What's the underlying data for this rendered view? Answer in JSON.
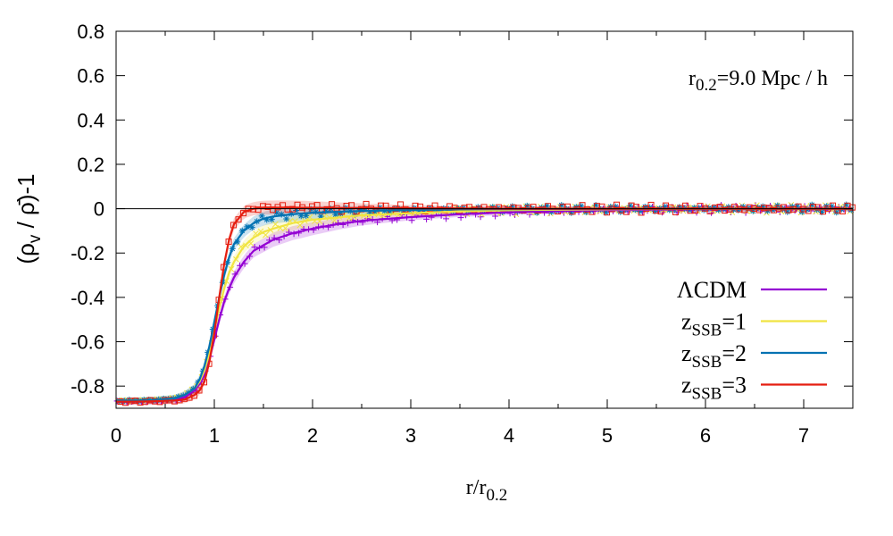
{
  "chart_data": {
    "type": "line",
    "annotation": {
      "base": "r",
      "sub": "0.2",
      "rest": "=9.0 Mpc / h"
    },
    "xlabel": {
      "base": "r/r",
      "sub": "0.2"
    },
    "ylabel": {
      "open": "(ρ",
      "sub": "v",
      "rest": " / ρ̄)-1"
    },
    "xlim": [
      0,
      7.5
    ],
    "ylim": [
      -0.9,
      0.8
    ],
    "xticks": [
      0,
      1,
      2,
      3,
      4,
      5,
      6,
      7
    ],
    "yticks": [
      0.8,
      0.6,
      0.4,
      0.2,
      0,
      -0.2,
      -0.4,
      -0.6,
      -0.8
    ],
    "ytick_labels": [
      "0.8",
      "0.6",
      "0.4",
      "0.2",
      "0",
      "-0.2",
      "-0.4",
      "-0.6",
      "-0.8"
    ],
    "zero_line": true,
    "legend_position": "bottom-right",
    "x": [
      0,
      0.2,
      0.4,
      0.6,
      0.7,
      0.8,
      0.85,
      0.9,
      0.95,
      1.0,
      1.05,
      1.1,
      1.15,
      1.2,
      1.3,
      1.4,
      1.5,
      1.6,
      1.8,
      2.0,
      2.25,
      2.5,
      3.0,
      3.5,
      4.0,
      5.0,
      6.0,
      7.0,
      7.5
    ],
    "series": [
      {
        "name": "ΛCDM",
        "label": {
          "base": "ΛCDM",
          "sub": "",
          "rest": ""
        },
        "color": "#9400d3",
        "marker": "plus",
        "values": [
          -0.87,
          -0.87,
          -0.868,
          -0.862,
          -0.85,
          -0.82,
          -0.79,
          -0.75,
          -0.68,
          -0.59,
          -0.5,
          -0.42,
          -0.36,
          -0.31,
          -0.24,
          -0.19,
          -0.165,
          -0.14,
          -0.11,
          -0.09,
          -0.07,
          -0.055,
          -0.038,
          -0.025,
          -0.016,
          -0.006,
          -0.002,
          0.0,
          0.0
        ]
      },
      {
        "name": "zSSB=1",
        "label": {
          "base": "z",
          "sub": "SSB",
          "rest": "=1"
        },
        "color": "#f0e442",
        "marker": "cross",
        "values": [
          -0.865,
          -0.865,
          -0.862,
          -0.855,
          -0.84,
          -0.81,
          -0.78,
          -0.73,
          -0.65,
          -0.55,
          -0.45,
          -0.36,
          -0.29,
          -0.24,
          -0.17,
          -0.13,
          -0.105,
          -0.09,
          -0.065,
          -0.05,
          -0.04,
          -0.03,
          -0.02,
          -0.012,
          -0.007,
          -0.003,
          -0.001,
          0.0,
          0.0
        ]
      },
      {
        "name": "zSSB=2",
        "label": {
          "base": "z",
          "sub": "SSB",
          "rest": "=2"
        },
        "color": "#0072b2",
        "marker": "star",
        "values": [
          -0.865,
          -0.865,
          -0.862,
          -0.855,
          -0.84,
          -0.81,
          -0.77,
          -0.71,
          -0.62,
          -0.51,
          -0.4,
          -0.3,
          -0.22,
          -0.16,
          -0.1,
          -0.065,
          -0.045,
          -0.035,
          -0.025,
          -0.018,
          -0.014,
          -0.01,
          -0.006,
          -0.003,
          -0.002,
          -0.001,
          0.0,
          0.0,
          0.0
        ]
      },
      {
        "name": "zSSB=3",
        "label": {
          "base": "z",
          "sub": "SSB",
          "rest": "=3"
        },
        "color": "#e51e10",
        "marker": "square",
        "values": [
          -0.87,
          -0.87,
          -0.868,
          -0.865,
          -0.86,
          -0.84,
          -0.82,
          -0.78,
          -0.69,
          -0.56,
          -0.4,
          -0.25,
          -0.14,
          -0.07,
          -0.015,
          0.0,
          0.005,
          0.005,
          0.005,
          0.004,
          0.003,
          0.003,
          0.002,
          0.001,
          0.0,
          0.0,
          0.0,
          0.0,
          0.0
        ]
      }
    ]
  }
}
